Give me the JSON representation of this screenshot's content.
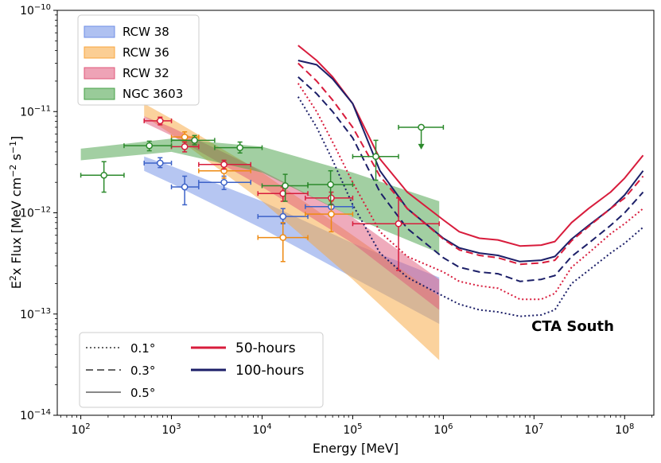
{
  "chart_data": {
    "type": "line",
    "title": "",
    "xlabel": "Energy [MeV]",
    "ylabel_parts": {
      "a": "E",
      "sq": "2",
      "b": "x Flux [MeV cm",
      "m2": "−2",
      "c": " s",
      "m1": "−1",
      "d": "]"
    },
    "x_scale": "log",
    "y_scale": "log",
    "xlim": [
      55,
      210000000
    ],
    "ylim": [
      1e-14,
      1e-10
    ],
    "x_ticks": [
      {
        "value": 100,
        "base": "10",
        "exp": "2"
      },
      {
        "value": 1000,
        "base": "10",
        "exp": "3"
      },
      {
        "value": 10000,
        "base": "10",
        "exp": "4"
      },
      {
        "value": 100000,
        "base": "10",
        "exp": "5"
      },
      {
        "value": 1000000,
        "base": "10",
        "exp": "6"
      },
      {
        "value": 10000000,
        "base": "10",
        "exp": "7"
      },
      {
        "value": 100000000,
        "base": "10",
        "exp": "8"
      }
    ],
    "y_ticks": [
      {
        "value": 1e-14,
        "base": "10",
        "exp": "−14"
      },
      {
        "value": 1e-13,
        "base": "10",
        "exp": "−13"
      },
      {
        "value": 1e-12,
        "base": "10",
        "exp": "−12"
      },
      {
        "value": 1e-11,
        "base": "10",
        "exp": "−11"
      },
      {
        "value": 1e-10,
        "base": "10",
        "exp": "−10"
      }
    ],
    "annotation": "CTA South",
    "bands": [
      {
        "name": "RCW 38",
        "color": "#6d8ee6",
        "opacity": 0.5,
        "x": [
          500,
          1000,
          10000,
          100000,
          900000
        ],
        "upper": [
          3.6e-12,
          2.9e-12,
          1.3e-12,
          5e-13,
          2.3e-13
        ],
        "lower": [
          2.6e-12,
          1.95e-12,
          7e-13,
          2.3e-13,
          8e-14
        ]
      },
      {
        "name": "RCW 36",
        "color": "#f8a53c",
        "opacity": 0.5,
        "x": [
          500,
          1000,
          10000,
          100000,
          900000
        ],
        "upper": [
          1.2e-11,
          8.5e-12,
          2.5e-12,
          6e-13,
          1.5e-13
        ],
        "lower": [
          9e-12,
          6e-12,
          1.3e-12,
          2.2e-13,
          3.5e-14
        ]
      },
      {
        "name": "RCW 32",
        "color": "#e0577a",
        "opacity": 0.5,
        "x": [
          500,
          1000,
          10000,
          100000,
          900000
        ],
        "upper": [
          9e-12,
          7e-12,
          2.6e-12,
          9e-13,
          2.2e-13
        ],
        "lower": [
          7.8e-12,
          5.8e-12,
          1.8e-12,
          5e-13,
          1.1e-13
        ]
      },
      {
        "name": "NGC 3603",
        "color": "#45a045",
        "opacity": 0.5,
        "x": [
          100,
          1000,
          10000,
          100000,
          900000
        ],
        "upper": [
          4.3e-12,
          5.4e-12,
          4.5e-12,
          2.5e-12,
          1.3e-12
        ],
        "lower": [
          3.3e-12,
          4e-12,
          2.5e-12,
          9e-13,
          4e-13
        ]
      }
    ],
    "points": [
      {
        "series": "RCW 38",
        "color": "#3c62c8",
        "data": [
          {
            "x": 750,
            "y": 3.1e-12,
            "xerr": [
              500,
              1000
            ],
            "yerr": [
              2.8e-12,
              3.5e-12
            ]
          },
          {
            "x": 1400,
            "y": 1.8e-12,
            "xerr": [
              1000,
              2000
            ],
            "yerr": [
              1.2e-12,
              2.3e-12
            ]
          },
          {
            "x": 3800,
            "y": 2e-12,
            "xerr": [
              2000,
              7500
            ],
            "yerr": [
              1.7e-12,
              2.3e-12
            ]
          },
          {
            "x": 17000,
            "y": 9.2e-13,
            "xerr": [
              9000,
              32000
            ],
            "yerr": [
              7.8e-13,
              1.1e-12
            ]
          },
          {
            "x": 58000,
            "y": 1.15e-12,
            "xerr": [
              30000,
              100000
            ],
            "yerr": [
              1e-12,
              1.3e-12
            ]
          }
        ]
      },
      {
        "series": "RCW 36",
        "color": "#ee8a12",
        "data": [
          {
            "x": 1400,
            "y": 5.6e-12,
            "xerr": [
              1000,
              2000
            ],
            "yerr": [
              5e-12,
              6.3e-12
            ]
          },
          {
            "x": 3800,
            "y": 2.6e-12,
            "xerr": [
              2000,
              7500
            ],
            "yerr": [
              2.2e-12,
              3e-12
            ]
          },
          {
            "x": 17000,
            "y": 5.7e-13,
            "xerr": [
              9000,
              32000
            ],
            "yerr": [
              3.3e-13,
              8e-13
            ]
          },
          {
            "x": 58000,
            "y": 9.7e-13,
            "xerr": [
              30000,
              100000
            ],
            "yerr": [
              6.5e-13,
              1.3e-12
            ]
          }
        ]
      },
      {
        "series": "RCW 32",
        "color": "#d81c3c",
        "data": [
          {
            "x": 750,
            "y": 8.1e-12,
            "xerr": [
              500,
              1000
            ],
            "yerr": [
              7.4e-12,
              8.8e-12
            ]
          },
          {
            "x": 1400,
            "y": 4.5e-12,
            "xerr": [
              1000,
              2000
            ],
            "yerr": [
              4e-12,
              5e-12
            ]
          },
          {
            "x": 3800,
            "y": 3e-12,
            "xerr": [
              2000,
              7500
            ],
            "yerr": [
              2.7e-12,
              3.3e-12
            ]
          },
          {
            "x": 17000,
            "y": 1.55e-12,
            "xerr": [
              9000,
              32000
            ],
            "yerr": [
              1.3e-12,
              1.8e-12
            ]
          },
          {
            "x": 58000,
            "y": 1.4e-12,
            "xerr": [
              30000,
              100000
            ],
            "yerr": [
              1.2e-12,
              1.6e-12
            ]
          },
          {
            "x": 320000,
            "y": 7.8e-13,
            "xerr": [
              100000,
              900000
            ],
            "yerr": [
              2.7e-13,
              1.4e-12
            ]
          }
        ]
      },
      {
        "series": "NGC 3603",
        "color": "#2c8a2c",
        "data": [
          {
            "x": 180,
            "y": 2.35e-12,
            "xerr": [
              100,
              300
            ],
            "yerr": [
              1.6e-12,
              3.2e-12
            ]
          },
          {
            "x": 570,
            "y": 4.6e-12,
            "xerr": [
              300,
              1000
            ],
            "yerr": [
              4.1e-12,
              5.1e-12
            ]
          },
          {
            "x": 1800,
            "y": 5.2e-12,
            "xerr": [
              1000,
              3000
            ],
            "yerr": [
              4.7e-12,
              5.8e-12
            ]
          },
          {
            "x": 5700,
            "y": 4.4e-12,
            "xerr": [
              3000,
              10000
            ],
            "yerr": [
              3.9e-12,
              5e-12
            ]
          },
          {
            "x": 18000,
            "y": 1.85e-12,
            "xerr": [
              10000,
              32000
            ],
            "yerr": [
              1.3e-12,
              2.4e-12
            ]
          },
          {
            "x": 57000,
            "y": 1.9e-12,
            "xerr": [
              32000,
              100000
            ],
            "yerr": [
              1.2e-12,
              2.6e-12
            ]
          },
          {
            "x": 180000,
            "y": 3.6e-12,
            "xerr": [
              100000,
              320000
            ],
            "yerr": [
              2.1e-12,
              5.2e-12
            ]
          },
          {
            "x": 570000,
            "y": 7e-12,
            "xerr": [
              320000,
              1000000
            ],
            "upper_limit": true,
            "arrow_to": 4.3e-12
          }
        ]
      }
    ],
    "sensitivity_curves": [
      {
        "name": "50-hours 0.5°",
        "color": "#d81c3c",
        "style": "solid",
        "x": [
          25000,
          40000,
          60000,
          100000,
          200000,
          400000,
          1000000,
          1500000,
          2500000,
          4000000,
          7000000,
          12000000,
          17000000,
          26000000,
          40000000,
          70000000,
          100000000,
          160000000
        ],
        "y": [
          4.5e-11,
          3.2e-11,
          2.2e-11,
          1.2e-11,
          3.4e-12,
          1.6e-12,
          8.5e-13,
          6.5e-13,
          5.6e-13,
          5.4e-13,
          4.7e-13,
          4.8e-13,
          5.2e-13,
          8e-13,
          1.1e-12,
          1.6e-12,
          2.2e-12,
          3.7e-12
        ]
      },
      {
        "name": "100-hours 0.5°",
        "color": "#1c1f68",
        "style": "solid",
        "x": [
          25000,
          40000,
          60000,
          100000,
          200000,
          400000,
          1000000,
          1500000,
          2500000,
          4000000,
          7000000,
          12000000,
          17000000,
          26000000,
          40000000,
          70000000,
          100000000,
          160000000
        ],
        "y": [
          3.2e-11,
          2.9e-11,
          2.1e-11,
          1.2e-11,
          2.6e-12,
          1.1e-12,
          5.6e-13,
          4.5e-13,
          4e-13,
          3.8e-13,
          3.3e-13,
          3.4e-13,
          3.7e-13,
          5.5e-13,
          7.5e-13,
          1.1e-12,
          1.5e-12,
          2.6e-12
        ]
      },
      {
        "name": "50-hours 0.3°",
        "color": "#d81c3c",
        "style": "dashed",
        "x": [
          25000,
          40000,
          60000,
          100000,
          200000,
          400000,
          1000000,
          1500000,
          2500000,
          4000000,
          7000000,
          12000000,
          17000000,
          26000000,
          40000000,
          70000000,
          100000000,
          160000000
        ],
        "y": [
          3e-11,
          2e-11,
          1.3e-11,
          7e-12,
          2.3e-12,
          1.1e-12,
          5.5e-13,
          4.3e-13,
          3.8e-13,
          3.6e-13,
          3.1e-13,
          3.2e-13,
          3.4e-13,
          5.3e-13,
          7.3e-13,
          1.1e-12,
          1.4e-12,
          2.3e-12
        ]
      },
      {
        "name": "100-hours 0.3°",
        "color": "#1c1f68",
        "style": "dashed",
        "x": [
          25000,
          40000,
          60000,
          100000,
          200000,
          400000,
          1000000,
          1500000,
          2500000,
          4000000,
          7000000,
          12000000,
          17000000,
          26000000,
          40000000,
          70000000,
          100000000,
          160000000
        ],
        "y": [
          2.2e-11,
          1.5e-11,
          1e-11,
          5.5e-12,
          1.6e-12,
          7e-13,
          3.6e-13,
          2.9e-13,
          2.6e-13,
          2.5e-13,
          2.1e-13,
          2.2e-13,
          2.4e-13,
          3.7e-13,
          5e-13,
          7.5e-13,
          1e-12,
          1.6e-12
        ]
      },
      {
        "name": "50-hours 0.1°",
        "color": "#d81c3c",
        "style": "dotted",
        "x": [
          25000,
          40000,
          60000,
          100000,
          200000,
          400000,
          1000000,
          1500000,
          2500000,
          4000000,
          7000000,
          12000000,
          17000000,
          26000000,
          40000000,
          70000000,
          100000000,
          160000000
        ],
        "y": [
          1.9e-11,
          1e-11,
          5e-12,
          2e-12,
          6.5e-13,
          3.7e-13,
          2.6e-13,
          2.1e-13,
          1.9e-13,
          1.8e-13,
          1.4e-13,
          1.4e-13,
          1.6e-13,
          2.9e-13,
          4e-13,
          6.2e-13,
          7.8e-13,
          1.1e-12
        ]
      },
      {
        "name": "100-hours 0.1°",
        "color": "#1c1f68",
        "style": "dotted",
        "x": [
          25000,
          40000,
          60000,
          100000,
          200000,
          400000,
          1000000,
          1500000,
          2500000,
          4000000,
          7000000,
          12000000,
          17000000,
          26000000,
          40000000,
          70000000,
          100000000,
          160000000
        ],
        "y": [
          1.4e-11,
          7e-12,
          3.3e-12,
          1.2e-12,
          4e-13,
          2.3e-13,
          1.5e-13,
          1.25e-13,
          1.1e-13,
          1.05e-13,
          9.5e-14,
          9.8e-14,
          1.1e-13,
          2e-13,
          2.7e-13,
          4e-13,
          5e-13,
          7.2e-13
        ]
      }
    ],
    "legend_sources": {
      "location": "upper-left",
      "entries": [
        {
          "label": "RCW 38",
          "color": "#6d8ee6"
        },
        {
          "label": "RCW 36",
          "color": "#f8a53c"
        },
        {
          "label": "RCW 32",
          "color": "#e0577a"
        },
        {
          "label": "NGC 3603",
          "color": "#45a045"
        }
      ]
    },
    "legend_styles": {
      "location": "lower-left",
      "entries": [
        {
          "label": "0.1°",
          "style": "dotted",
          "color": "#666666"
        },
        {
          "label": "0.3°",
          "style": "dashed",
          "color": "#666666"
        },
        {
          "label": "0.5°",
          "style": "solid",
          "color": "#888888"
        },
        {
          "label": "50-hours",
          "style": "solid",
          "color": "#d81c3c"
        },
        {
          "label": "100-hours",
          "style": "solid",
          "color": "#1c1f68"
        }
      ]
    }
  }
}
